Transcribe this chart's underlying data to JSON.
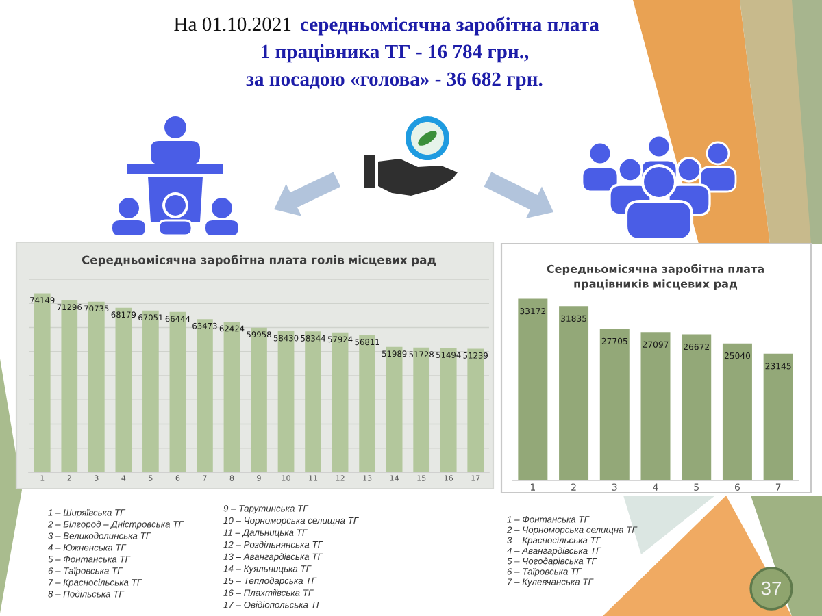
{
  "chart_data": [
    {
      "type": "other",
      "annotations": [
        "На 01.10.2021",
        "середньомісячна заробітна плата",
        "1 працівника ТГ - 16 784 грн.,",
        "за посадою «голова» - 36 682 грн.",
        "37"
      ]
    },
    {
      "type": "bar",
      "title": "Середньомісячна заробітна плата голів місцевих рад",
      "categories": [
        "1",
        "2",
        "3",
        "4",
        "5",
        "6",
        "7",
        "8",
        "9",
        "10",
        "11",
        "12",
        "13",
        "14",
        "15",
        "16",
        "17"
      ],
      "values": [
        74149,
        71296,
        70735,
        68179,
        67051,
        66444,
        63473,
        62424,
        59958,
        58430,
        58344,
        57924,
        56811,
        51989,
        51728,
        51494,
        51239
      ],
      "color": "#b3c79c",
      "data_labels": true,
      "ylim": [
        0,
        80000
      ],
      "yticks": [
        {
          "value": 0,
          "label": null
        },
        {
          "value": 10000,
          "label": null
        },
        {
          "value": 20000,
          "label": null
        },
        {
          "value": 30000,
          "label": null
        },
        {
          "value": 40000,
          "label": null
        },
        {
          "value": 50000,
          "label": null
        },
        {
          "value": 60000,
          "label": null
        },
        {
          "value": 70000,
          "label": null
        },
        {
          "value": 80000,
          "label": null
        }
      ],
      "grid": "y",
      "tick_labels": "x",
      "annotations": [
        "1 – Ширяївська ТГ",
        "2 – Білгород – Дністровська ТГ",
        "3 – Великодолинська ТГ",
        "4 – Южненська ТГ",
        "5 – Фонтанська ТГ",
        "6 – Таїровська ТГ",
        "7 – Красносільська ТГ",
        "8 – Подільська ТГ",
        "9 – Тарутинська ТГ",
        "10 – Чорноморська селищна ТГ",
        "11 – Дальницька ТГ",
        "12 – Роздільнянська ТГ",
        "13 – Авангардівська ТГ",
        "14 – Куяльницька ТГ",
        "15 – Теплодарська ТГ",
        "16 – Плахтіївська ТГ",
        "17 – Овідіопольська ТГ"
      ]
    },
    {
      "type": "bar",
      "title": "Середньомісячна заробітна плата\nпрацівників місцевих рад",
      "categories": [
        "1",
        "2",
        "3",
        "4",
        "5",
        "6",
        "7"
      ],
      "values": [
        33172,
        31835,
        27705,
        27097,
        26672,
        25040,
        23145
      ],
      "color": "#93a878",
      "data_labels": true,
      "tick_labels": "x",
      "annotations": [
        "1 – Фонтанська ТГ",
        "2 – Чорноморська селищна ТГ",
        "3 – Красносільська ТГ",
        "4 – Авангардівська ТГ",
        "5 – Чогодарівська ТГ",
        "6 – Таїровська ТГ",
        "7 – Кулевчанська ТГ"
      ]
    }
  ]
}
